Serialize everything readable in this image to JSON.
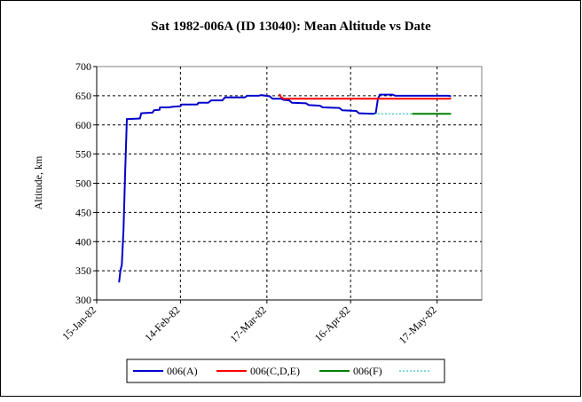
{
  "chart_data": {
    "type": "line",
    "title": "Sat 1982-006A (ID 13040): Mean Altitude  vs Date",
    "ylabel": "Altitude, km",
    "xlabel": "",
    "ylim": [
      300,
      700
    ],
    "yticks": [
      300,
      350,
      400,
      450,
      500,
      550,
      600,
      650,
      700
    ],
    "xticks": [
      {
        "label": "15-Jan-82",
        "day": 0
      },
      {
        "label": "14-Feb-82",
        "day": 30
      },
      {
        "label": "17-Mar-82",
        "day": 61
      },
      {
        "label": "16-Apr-82",
        "day": 91
      },
      {
        "label": "17-May-82",
        "day": 122
      }
    ],
    "xlim_days": [
      0,
      138
    ],
    "grid": true,
    "legend_position": "bottom",
    "series": [
      {
        "name": "006(A)",
        "color": "#0000cc",
        "style": "solid",
        "points": [
          [
            8,
            330
          ],
          [
            8.5,
            350
          ],
          [
            9,
            360
          ],
          [
            9.6,
            420
          ],
          [
            10.2,
            520
          ],
          [
            10.8,
            610
          ],
          [
            15.5,
            611
          ],
          [
            16,
            620
          ],
          [
            20,
            621
          ],
          [
            20.5,
            625
          ],
          [
            22.5,
            626
          ],
          [
            22.7,
            630
          ],
          [
            26,
            630
          ],
          [
            27,
            631
          ],
          [
            30,
            632
          ],
          [
            30.5,
            635
          ],
          [
            36,
            635
          ],
          [
            36.5,
            638
          ],
          [
            40,
            638
          ],
          [
            41,
            642
          ],
          [
            45,
            642
          ],
          [
            46,
            647
          ],
          [
            53,
            647
          ],
          [
            54,
            650
          ],
          [
            58,
            650
          ],
          [
            59,
            651
          ],
          [
            62,
            649
          ],
          [
            63,
            645
          ],
          [
            66,
            645
          ],
          [
            67,
            643
          ],
          [
            69,
            642
          ],
          [
            70,
            638
          ],
          [
            75,
            637
          ],
          [
            76,
            634
          ],
          [
            80,
            633
          ],
          [
            81,
            630
          ],
          [
            87,
            629
          ],
          [
            88,
            625
          ],
          [
            93,
            624
          ],
          [
            94,
            620
          ],
          [
            99,
            619
          ],
          [
            100,
            620
          ],
          [
            100.8,
            645
          ],
          [
            101.5,
            652
          ],
          [
            106,
            652
          ],
          [
            107,
            650
          ],
          [
            117,
            650
          ],
          [
            126,
            650
          ],
          [
            127,
            649
          ]
        ]
      },
      {
        "name": "006(C,D,E)",
        "color": "#ff0000",
        "style": "solid",
        "points": [
          [
            65.5,
            653
          ],
          [
            66,
            648
          ],
          [
            67,
            645
          ],
          [
            68,
            645
          ],
          [
            127,
            645
          ]
        ]
      },
      {
        "name": "006(F)",
        "color": "#008000",
        "style": "solid",
        "points": [
          [
            113,
            619
          ],
          [
            127,
            619
          ]
        ]
      },
      {
        "name": "",
        "color": "#00b3b3",
        "style": "dotted",
        "points": [
          [
            99.5,
            619
          ],
          [
            113,
            619
          ]
        ]
      }
    ]
  }
}
